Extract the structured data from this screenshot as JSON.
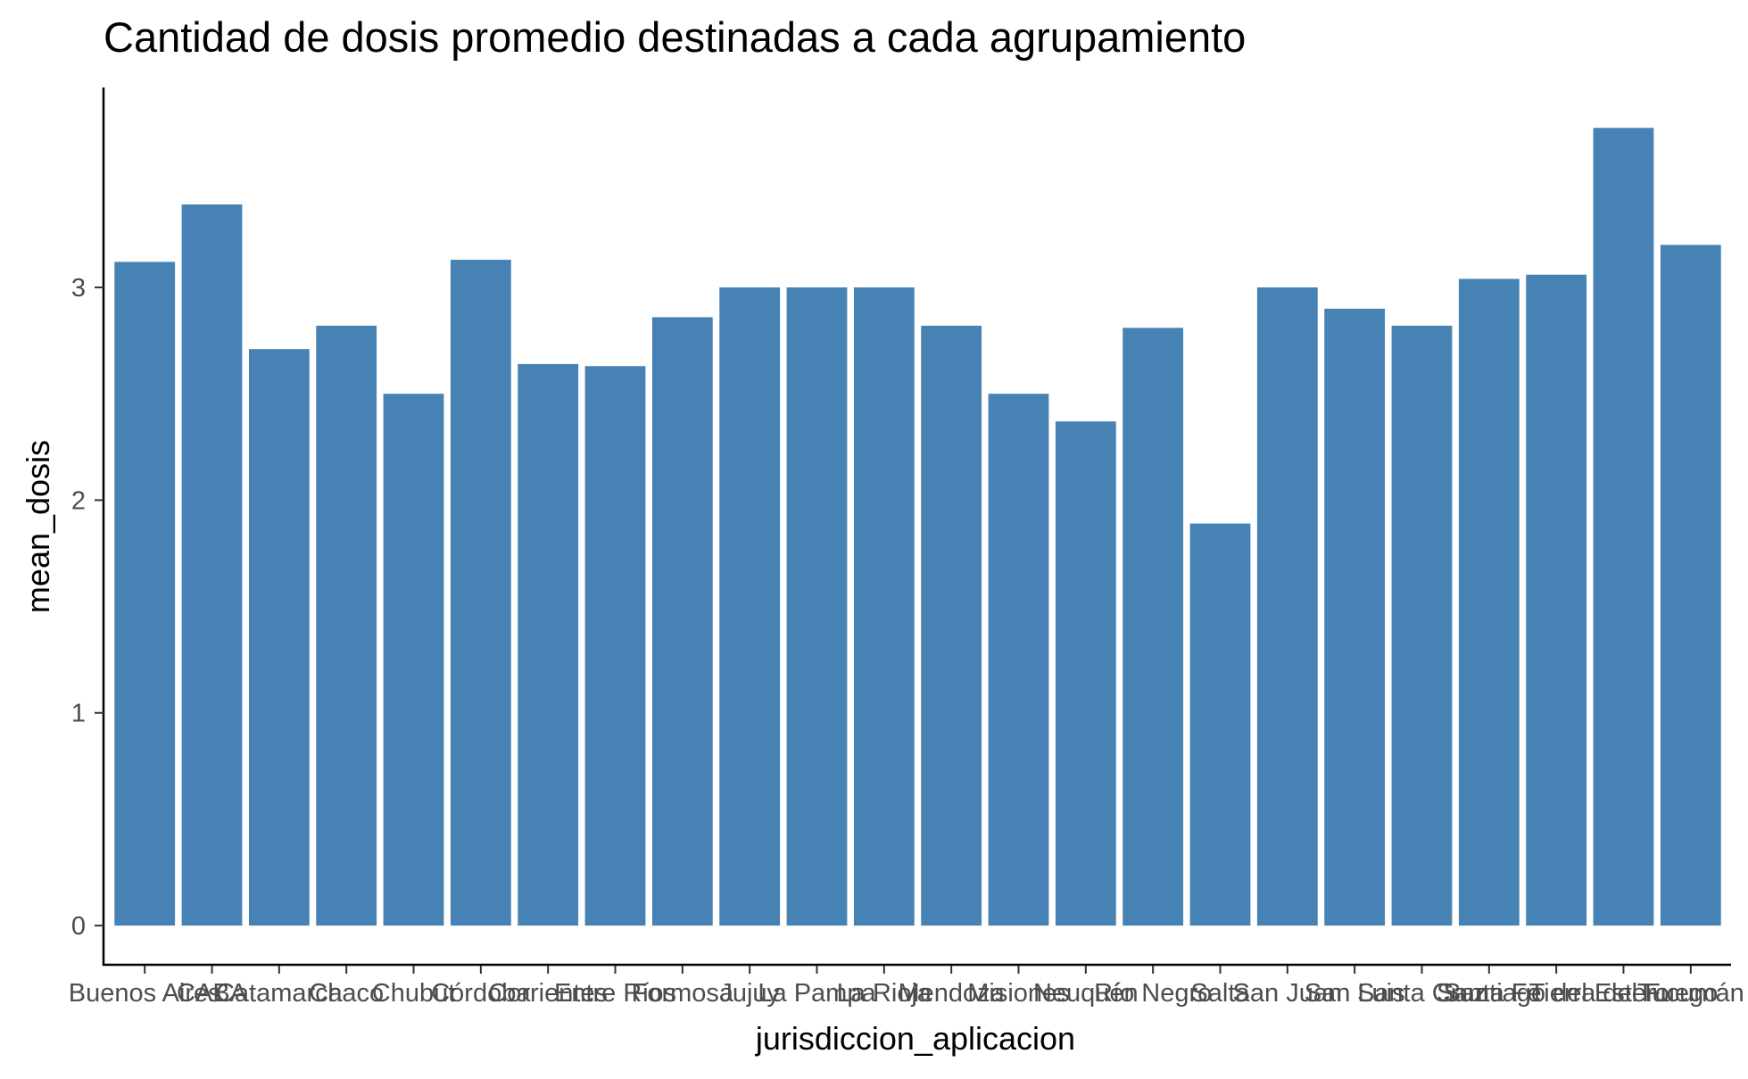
{
  "chart_data": {
    "type": "bar",
    "title": "Cantidad de dosis promedio destinadas a cada agrupamiento",
    "xlabel": "jurisdiccion_aplicacion",
    "ylabel": "mean_dosis",
    "categories": [
      "Buenos Aires",
      "CABA",
      "Catamarca",
      "Chaco",
      "Chubut",
      "Córdoba",
      "Corrientes",
      "Entre Ríos",
      "Formosa",
      "Jujuy",
      "La Pampa",
      "La Rioja",
      "Mendoza",
      "Misiones",
      "Neuquén",
      "Río Negro",
      "Salta",
      "San Juan",
      "San Luis",
      "Santa Cruz",
      "Santa Fe",
      "Santiago del Estero",
      "Tierra del Fuego",
      "Tucumán"
    ],
    "values": [
      3.12,
      3.39,
      2.71,
      2.82,
      2.5,
      3.13,
      2.64,
      2.63,
      2.86,
      3.0,
      3.0,
      3.0,
      2.82,
      2.5,
      2.37,
      2.81,
      1.89,
      3.0,
      2.9,
      2.82,
      3.04,
      3.06,
      3.75,
      3.2
    ],
    "yticks": [
      0,
      1,
      2,
      3
    ],
    "ylim": [
      -0.18,
      3.94
    ],
    "bar_color": "#4682b4",
    "grid": false,
    "legend": "none"
  }
}
